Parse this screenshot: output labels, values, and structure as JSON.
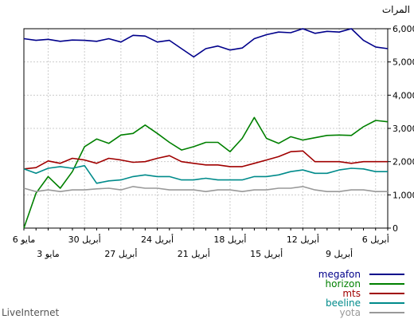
{
  "chart_data": {
    "type": "line",
    "title": "",
    "ylabel": "المرات",
    "ylim": [
      0,
      6000
    ],
    "y_ticks": [
      "0",
      "1,000",
      "2,000",
      "3,000",
      "4,000",
      "5,000",
      "6,000"
    ],
    "y_tick_values": [
      0,
      1000,
      2000,
      3000,
      4000,
      5000,
      6000
    ],
    "grid": true,
    "x_tick_labels": [
      {
        "label": "6 أبريل",
        "row": 1,
        "index": 29
      },
      {
        "label": "9 أبريل",
        "row": 2,
        "index": 26
      },
      {
        "label": "12 أبريل",
        "row": 1,
        "index": 23
      },
      {
        "label": "15 أبريل",
        "row": 2,
        "index": 20
      },
      {
        "label": "18 أبريل",
        "row": 1,
        "index": 17
      },
      {
        "label": "21 أبريل",
        "row": 2,
        "index": 14
      },
      {
        "label": "24 أبريل",
        "row": 1,
        "index": 11
      },
      {
        "label": "27 أبريل",
        "row": 2,
        "index": 8
      },
      {
        "label": "30 أبريل",
        "row": 1,
        "index": 5
      },
      {
        "label": "3 مايو",
        "row": 2,
        "index": 2
      },
      {
        "label": "6 مايو",
        "row": 1,
        "index": 0
      }
    ],
    "series": [
      {
        "name": "megafon",
        "color": "#00008b",
        "values": [
          5700,
          5650,
          5680,
          5620,
          5660,
          5650,
          5620,
          5700,
          5600,
          5800,
          5780,
          5600,
          5650,
          5400,
          5150,
          5400,
          5480,
          5360,
          5420,
          5700,
          5820,
          5900,
          5880,
          6000,
          5860,
          5920,
          5900,
          6000,
          5650,
          5450,
          5400
        ]
      },
      {
        "name": "horizon",
        "color": "#008000",
        "values": [
          0,
          1050,
          1550,
          1200,
          1700,
          2450,
          2680,
          2550,
          2800,
          2850,
          3100,
          2850,
          2580,
          2350,
          2450,
          2580,
          2580,
          2300,
          2700,
          3330,
          2700,
          2550,
          2750,
          2650,
          2720,
          2790,
          2800,
          2790,
          3050,
          3240,
          3200
        ]
      },
      {
        "name": "mts",
        "color": "#a00000",
        "values": [
          1780,
          1820,
          2020,
          1950,
          2100,
          2050,
          1950,
          2100,
          2050,
          1980,
          2000,
          2100,
          2180,
          2000,
          1950,
          1900,
          1900,
          1850,
          1850,
          1950,
          2050,
          2150,
          2300,
          2320,
          2000,
          2000,
          2000,
          1950,
          2000,
          2000,
          2000
        ]
      },
      {
        "name": "beeline",
        "color": "#008b8b",
        "values": [
          1780,
          1650,
          1800,
          1850,
          1800,
          1880,
          1350,
          1420,
          1450,
          1550,
          1600,
          1550,
          1550,
          1450,
          1450,
          1500,
          1450,
          1450,
          1450,
          1550,
          1550,
          1600,
          1700,
          1750,
          1650,
          1650,
          1750,
          1800,
          1780,
          1700,
          1700
        ]
      },
      {
        "name": "yota",
        "color": "#999999",
        "values": [
          1200,
          1100,
          1150,
          1100,
          1150,
          1150,
          1180,
          1200,
          1150,
          1250,
          1200,
          1200,
          1150,
          1150,
          1150,
          1100,
          1150,
          1150,
          1100,
          1150,
          1150,
          1200,
          1200,
          1250,
          1150,
          1100,
          1100,
          1150,
          1150,
          1100,
          1100
        ]
      }
    ]
  },
  "footer": "LiveInternet"
}
